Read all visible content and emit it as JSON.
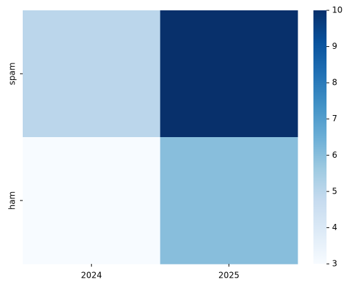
{
  "chart_data": {
    "type": "heatmap",
    "x_categories": [
      "2024",
      "2025"
    ],
    "y_categories": [
      "spam",
      "ham"
    ],
    "values": [
      [
        5,
        10
      ],
      [
        3,
        6
      ]
    ],
    "colorscale": [
      "#f7fbff",
      "#deebf7",
      "#c6dbef",
      "#9ecae1",
      "#6baed6",
      "#4292c6",
      "#2171b5",
      "#08519c",
      "#08306b"
    ],
    "clim": [
      3,
      10
    ],
    "cticks": [
      3,
      4,
      5,
      6,
      7,
      8,
      9,
      10
    ]
  }
}
